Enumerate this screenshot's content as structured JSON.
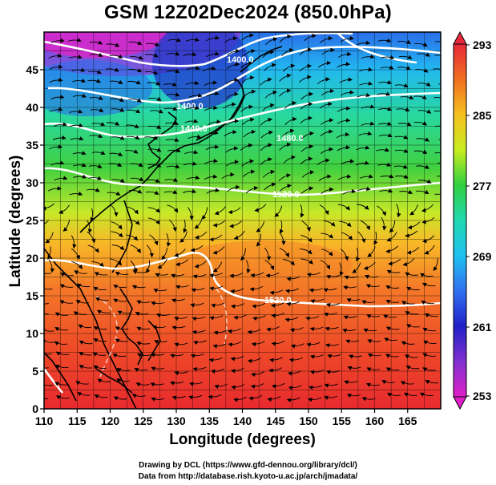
{
  "title": "GSM 12Z02Dec2024 (850.0hPa)",
  "map": {
    "x_axis_label": "Longitude (degrees)",
    "y_axis_label": "Latitude  (degrees)",
    "lon_ticks": [
      "110",
      "115",
      "120",
      "125",
      "130",
      "135",
      "140",
      "145",
      "150",
      "155",
      "160",
      "165"
    ],
    "lat_ticks": [
      "0",
      "5",
      "10",
      "15",
      "20",
      "25",
      "30",
      "35",
      "40",
      "45"
    ],
    "contour_labels": [
      "1400.0",
      "1400.0",
      "1440.0",
      "1480.0",
      "1520.0",
      "1520.0"
    ]
  },
  "colorbar": {
    "labels": [
      "293",
      "285",
      "277",
      "269",
      "261",
      "253"
    ],
    "colors": [
      "#e8283a",
      "#f07020",
      "#f6c020",
      "#c8ec20",
      "#30d040",
      "#20d8b0",
      "#20c0f0",
      "#3070f0",
      "#2020c8",
      "#8030d0",
      "#e020c8"
    ]
  },
  "footer": {
    "line1": "Drawing by DCL (https://www.gfd-dennou.org/library/dcl/)",
    "line2": "Data from http://database.rish.kyoto-u.ac.jp/arch/jmadata/"
  }
}
